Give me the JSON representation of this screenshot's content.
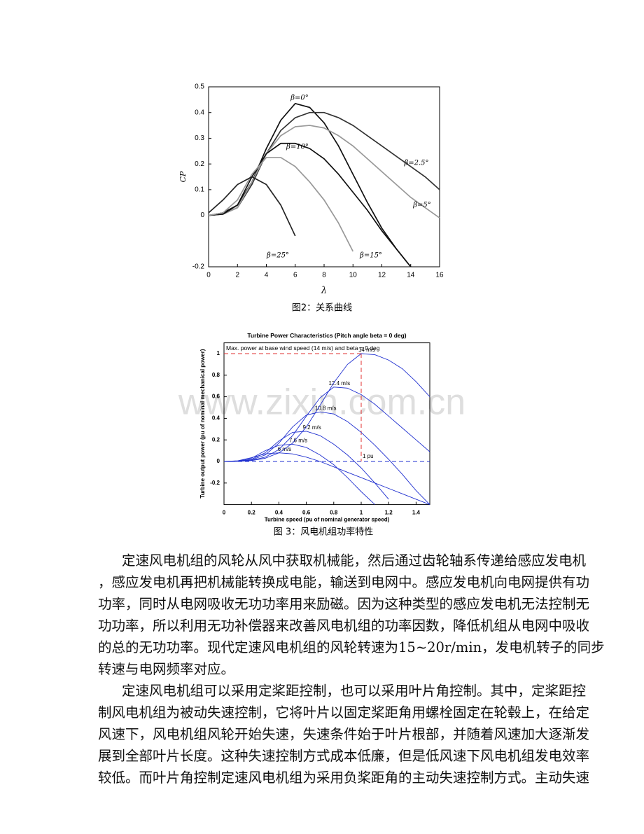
{
  "chart_data": [
    {
      "type": "line",
      "xlabel": "λ",
      "ylabel": "CP",
      "x": [
        0,
        1,
        2,
        3,
        4,
        5,
        6,
        7,
        8,
        9,
        10,
        11,
        12,
        13,
        14,
        15,
        16
      ],
      "xlim": [
        0,
        16
      ],
      "ylim": [
        -0.2,
        0.5
      ],
      "xticks": [
        0,
        2,
        4,
        6,
        8,
        10,
        12,
        14,
        16
      ],
      "yticks": [
        -0.2,
        0,
        0.1,
        0.2,
        0.3,
        0.4,
        0.5
      ],
      "series": [
        {
          "name": "β=0°",
          "color": "#111111",
          "values": [
            0,
            0.01,
            0.04,
            0.13,
            0.26,
            0.37,
            0.435,
            0.42,
            0.36,
            0.27,
            0.16,
            0.05,
            -0.05,
            -0.13,
            -0.2,
            null,
            null
          ]
        },
        {
          "name": "β=2.5°",
          "color": "#333333",
          "values": [
            0,
            0.005,
            0.03,
            0.12,
            0.24,
            0.33,
            0.38,
            0.4,
            0.4,
            0.38,
            0.35,
            0.31,
            0.27,
            0.23,
            0.19,
            0.15,
            0.1
          ]
        },
        {
          "name": "β=5°",
          "color": "#999999",
          "values": [
            0,
            0.005,
            0.03,
            0.13,
            0.24,
            0.31,
            0.345,
            0.35,
            0.34,
            0.31,
            0.27,
            0.22,
            0.17,
            0.12,
            0.07,
            0.03,
            -0.01
          ]
        },
        {
          "name": "β=10°",
          "color": "#111111",
          "values": [
            0,
            0.005,
            0.04,
            0.15,
            0.24,
            0.28,
            0.28,
            0.26,
            0.22,
            0.16,
            0.09,
            0.02,
            -0.06,
            -0.13,
            -0.2,
            null,
            null
          ]
        },
        {
          "name": "β=15°",
          "color": "#999999",
          "values": [
            0,
            0.01,
            0.06,
            0.16,
            0.225,
            0.225,
            0.19,
            0.13,
            0.06,
            -0.03,
            -0.14,
            null,
            null,
            null,
            null,
            null,
            null
          ]
        },
        {
          "name": "β=25°",
          "color": "#222222",
          "values": [
            0.01,
            0.06,
            0.12,
            0.15,
            0.12,
            0.04,
            -0.08,
            null,
            null,
            null,
            null,
            null,
            null,
            null,
            null,
            null,
            null
          ]
        }
      ]
    },
    {
      "type": "line",
      "title": "Turbine Power Characteristics (Pitch angle beta = 0 deg)",
      "xlabel": "Turbine speed (pu of nominal generator speed)",
      "ylabel": "Turbine output power (pu of nominal mechanical power)",
      "annotations": [
        "Max. power at base wind speed (14 m/s) and beta = 0 deg",
        "1 pu"
      ],
      "max_point": {
        "x": 1,
        "y": 1
      },
      "x": [
        0,
        0.1,
        0.2,
        0.3,
        0.4,
        0.5,
        0.6,
        0.7,
        0.8,
        0.9,
        1,
        1.1,
        1.2,
        1.3,
        1.4,
        1.5
      ],
      "xlim": [
        0,
        1.5
      ],
      "ylim": [
        -0.4,
        1.1
      ],
      "xticks": [
        0,
        0.2,
        0.4,
        0.6,
        0.8,
        1,
        1.2,
        1.4
      ],
      "yticks": [
        -0.2,
        0,
        0.2,
        0.4,
        0.6,
        0.8,
        1
      ],
      "series": [
        {
          "name": "6 m/s",
          "color": "#2030d0",
          "values": [
            0,
            0.006,
            0.035,
            0.07,
            0.08,
            0.07,
            0.04,
            0,
            -0.05,
            -0.1,
            -0.15,
            -0.2,
            -0.25,
            -0.3,
            -0.35,
            -0.4
          ]
        },
        {
          "name": "7.6 m/s",
          "color": "#2030d0",
          "values": [
            0,
            0.005,
            0.03,
            0.1,
            0.15,
            0.16,
            0.13,
            0.06,
            -0.03,
            -0.15,
            -0.28,
            -0.4,
            null,
            null,
            null,
            null
          ]
        },
        {
          "name": "9.2 m/s",
          "color": "#2030d0",
          "values": [
            0,
            0.004,
            0.02,
            0.08,
            0.19,
            0.27,
            0.28,
            0.24,
            0.16,
            0.06,
            -0.06,
            -0.2,
            -0.35,
            null,
            null,
            null
          ]
        },
        {
          "name": "10.8 m/s",
          "color": "#2030d0",
          "values": [
            0,
            0.003,
            0.015,
            0.06,
            0.17,
            0.32,
            0.43,
            0.46,
            0.44,
            0.37,
            0.27,
            0.15,
            0.02,
            -0.12,
            -0.27,
            -0.4
          ]
        },
        {
          "name": "12.4 m/s",
          "color": "#2030d0",
          "values": [
            0,
            0.002,
            0.01,
            0.04,
            0.11,
            0.24,
            0.42,
            0.59,
            0.69,
            0.68,
            0.62,
            0.53,
            0.42,
            0.31,
            0.2,
            0.09
          ]
        },
        {
          "name": "14 m/s",
          "color": "#2030d0",
          "values": [
            0,
            0.001,
            0.008,
            0.03,
            0.08,
            0.17,
            0.32,
            0.52,
            0.73,
            0.9,
            1,
            0.99,
            0.94,
            0.86,
            0.74,
            0.6
          ]
        }
      ]
    }
  ],
  "captions": [
    "图2：关系曲线",
    "图 3：风电机组功率特性"
  ],
  "watermark": "www.zixin.com.cn",
  "paragraphs": [
    [
      "定速风电机组的风轮从风中获取机械能，然后通过齿轮轴系传递给感应发电机",
      "，感应发电机再把机械能转换成电能，输送到电网中。感应发电机向电网提供有功",
      "功率，同时从电网吸收无功功率用来励磁。因为这种类型的感应发电机无法控制无",
      "功功率，所以利用无功补偿器来改善风电机组的功率因数，降低机组从电网中吸收",
      "的总的无功功率。现代定速风电机组的风轮转速为15~20r/min，发电机转子的同步",
      "转速与电网频率对应。"
    ],
    [
      "定速风电机组可以采用定桨距控制，也可以采用叶片角控制。其中，定桨距控",
      "制风电机组为被动失速控制，它将叶片以固定桨距角用螺栓固定在轮毂上，在给定",
      "风速下，风电机组风轮开始失速，失速条件始于叶片根部，并随着风速加大逐渐发",
      "展到全部叶片长度。这种失速控制方式成本低廉，但是低风速下风电机组发电效率",
      "较低。而叶片角控制定速风电机组为采用负桨距角的主动失速控制方式。主动失速"
    ]
  ]
}
